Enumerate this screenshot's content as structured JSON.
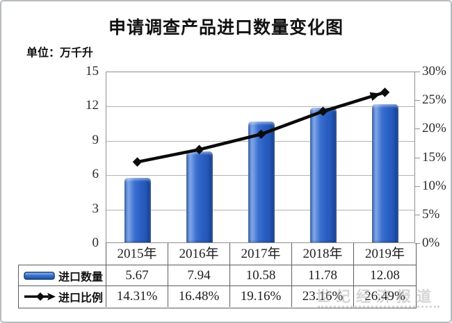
{
  "title": "申请调查产品进口数量变化图",
  "unit_label": "单位：万千升",
  "watermark": {
    "text": "世纪经济报道"
  },
  "colors": {
    "bar_main": "#2e62c8",
    "bar_dark": "#123a85",
    "bar_light": "#7da4e6",
    "line": "#0a0a0a",
    "grid": "#b3b3b3",
    "plot_border": "#8f8f8f",
    "table_border": "#5c5c5c",
    "frame_border": "#b7bbbf"
  },
  "chart_data": {
    "type": "combo-bar-line",
    "title": "申请调查产品进口数量变化图",
    "unit_label": "单位：万千升",
    "categories": [
      "2015年",
      "2016年",
      "2017年",
      "2018年",
      "2019年"
    ],
    "series": [
      {
        "name": "进口数量",
        "type": "bar",
        "axis": "left",
        "color": "#2e62c8",
        "values": [
          5.67,
          7.94,
          10.58,
          11.78,
          12.08
        ]
      },
      {
        "name": "进口比例",
        "type": "line",
        "axis": "right",
        "color": "#0a0a0a",
        "marker": "diamond",
        "arrow_end": true,
        "values_pct": [
          14.31,
          16.48,
          19.16,
          23.16,
          26.49
        ]
      }
    ],
    "left_axis": {
      "min": 0,
      "max": 15,
      "step": 3,
      "ticks": [
        "15",
        "12",
        "9",
        "6",
        "3",
        "0"
      ]
    },
    "right_axis": {
      "min": 0,
      "max": 30,
      "step": 5,
      "ticks": [
        "30%",
        "25%",
        "20%",
        "15%",
        "10%",
        "5%",
        "0%"
      ]
    },
    "grid": true,
    "legend_position": "bottom-table"
  },
  "table": {
    "rows": [
      {
        "legend": "进口数量",
        "icon": "bar-legend-icon",
        "values": [
          "5.67",
          "7.94",
          "10.58",
          "11.78",
          "12.08"
        ]
      },
      {
        "legend": "进口比例",
        "icon": "line-legend-icon",
        "values": [
          "14.31%",
          "16.48%",
          "19.16%",
          "23.16%",
          "26.49%"
        ]
      }
    ]
  }
}
